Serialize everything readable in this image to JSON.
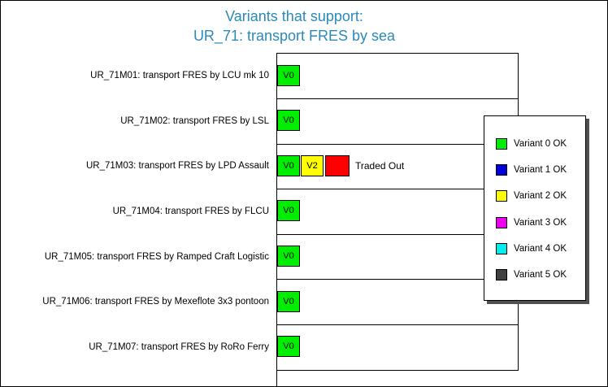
{
  "title": {
    "line1": "Variants that support:",
    "line2": "UR_71: transport FRES by sea"
  },
  "rows": [
    {
      "label": "UR_71M01: transport FRES by LCU mk 10",
      "cells": [
        "V0"
      ]
    },
    {
      "label": "UR_71M02: transport FRES by LSL",
      "cells": [
        "V0"
      ]
    },
    {
      "label": "UR_71M03: transport FRES by LPD Assault",
      "cells": [
        "V0",
        "V2",
        ""
      ],
      "note": "Traded Out"
    },
    {
      "label": "UR_71M04: transport FRES by FLCU",
      "cells": [
        "V0"
      ]
    },
    {
      "label": "UR_71M05: transport FRES by Ramped Craft Logistic",
      "cells": [
        "V0"
      ]
    },
    {
      "label": "UR_71M06: transport FRES by Mexeflote 3x3 pontoon",
      "cells": [
        "V0"
      ]
    },
    {
      "label": "UR_71M07: transport FRES by RoRo Ferry",
      "cells": [
        "V0"
      ]
    }
  ],
  "legend": [
    {
      "label": "Variant 0 OK",
      "color": "#00ee00"
    },
    {
      "label": "Variant 1 OK",
      "color": "#0000dd"
    },
    {
      "label": "Variant 2 OK",
      "color": "#ffff00"
    },
    {
      "label": "Variant 3 OK",
      "color": "#ee00ee"
    },
    {
      "label": "Variant 4 OK",
      "color": "#00eeee"
    },
    {
      "label": "Variant 5 OK",
      "color": "#404040"
    }
  ],
  "colors": {
    "title": "#2a8ab8",
    "variant_0": "#00ee00",
    "variant_2": "#ffff00",
    "traded_out": "#ff0000"
  }
}
